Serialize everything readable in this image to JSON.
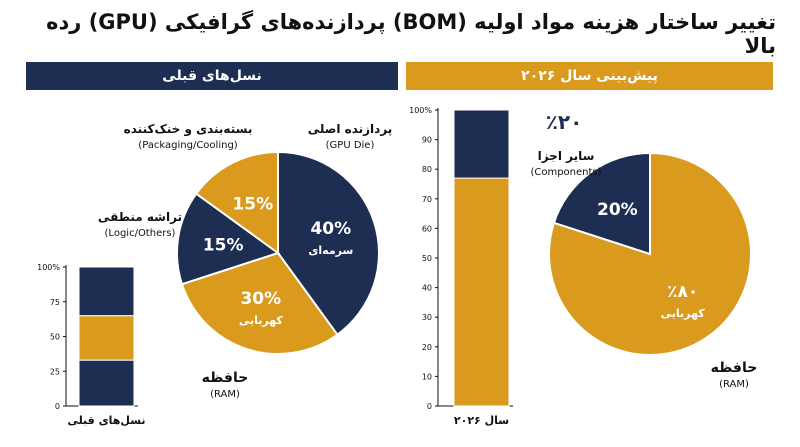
{
  "title": "تغییر ساختار هزینه مواد اولیه (BOM) پردازنده‌های گرافیکی (GPU) رده بالا",
  "colors": {
    "navy": "#1d2e52",
    "gold": "#d99a1e"
  },
  "panels": {
    "previous": {
      "header": "نسل‌های قبلی"
    },
    "forecast": {
      "header": "پیش‌بینی سال ۲۰۲۶"
    }
  },
  "chart_data": [
    {
      "type": "pie",
      "panel": "previous",
      "slices": [
        {
          "value": 40,
          "label": "40%",
          "sublabel": "سرمه‌ای",
          "outer_label": "پردازنده اصلی",
          "outer_sublabel": "(GPU Die)",
          "color": "#1d2e52"
        },
        {
          "value": 30,
          "label": "30%",
          "sublabel": "کهربایی",
          "outer_label": "حافظه",
          "outer_sublabel": "(RAM)",
          "color": "#d99a1e"
        },
        {
          "value": 15,
          "label": "15%",
          "sublabel": "",
          "outer_label": "تراشه منطقی",
          "outer_sublabel": "(Logic/Others)",
          "color": "#1d2e52"
        },
        {
          "value": 15,
          "label": "15%",
          "sublabel": "",
          "outer_label": "بسته‌بندی و خنک‌کننده",
          "outer_sublabel": "(Packaging/Cooling)",
          "color": "#d99a1e"
        }
      ]
    },
    {
      "type": "bar",
      "panel": "previous",
      "stacked": true,
      "categories": [
        "نسل‌های قبلی"
      ],
      "series": [
        {
          "values": [
            33
          ],
          "color": "#1d2e52"
        },
        {
          "values": [
            32
          ],
          "color": "#d99a1e"
        },
        {
          "values": [
            35
          ],
          "color": "#1d2e52"
        }
      ],
      "yticks": [
        "0",
        "25",
        "50",
        "75",
        "100%"
      ],
      "ylim": [
        0,
        100
      ]
    },
    {
      "type": "bar",
      "panel": "forecast",
      "stacked": true,
      "categories": [
        "سال ۲۰۲۶"
      ],
      "series": [
        {
          "values": [
            77
          ],
          "color": "#d99a1e"
        },
        {
          "values": [
            23
          ],
          "color": "#1d2e52"
        }
      ],
      "yticks": [
        "0",
        "10",
        "20",
        "30",
        "40",
        "50",
        "60",
        "70",
        "80",
        "90",
        "100%"
      ],
      "ylim": [
        0,
        100
      ]
    },
    {
      "type": "pie",
      "panel": "forecast",
      "slices": [
        {
          "value": 80,
          "label": "٪۸۰",
          "sublabel": "کهربایی",
          "outer_label": "حافظه",
          "outer_sublabel": "(RAM)",
          "color": "#d99a1e"
        },
        {
          "value": 20,
          "label": "20%",
          "sublabel": "",
          "outer_label": "سایر اجزا",
          "outer_sublabel": "(Components)",
          "color": "#1d2e52",
          "callout": "٪۲۰"
        }
      ]
    }
  ]
}
